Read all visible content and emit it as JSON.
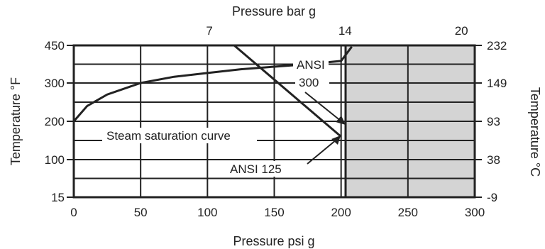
{
  "chart_data": {
    "type": "line",
    "xlabel": "Pressure psi g",
    "x2label": "Pressure bar g",
    "ylabel": "Temperature °F",
    "y2label": "Temperature °C",
    "xlim": [
      0,
      300
    ],
    "x_ticks": [
      "0",
      "50",
      "100",
      "150",
      "200",
      "250",
      "300"
    ],
    "x2_ticks": [
      {
        "label": "7",
        "psi": 101.5
      },
      {
        "label": "14",
        "psi": 203
      },
      {
        "label": "20",
        "psi": 290
      }
    ],
    "y_ticks_left": [
      {
        "label": "450",
        "f": 450
      },
      {
        "label": "300",
        "f": 300
      },
      {
        "label": "200",
        "f": 200
      },
      {
        "label": "100",
        "f": 100
      },
      {
        "label": "15",
        "f": 15
      }
    ],
    "y_ticks_right": [
      {
        "label": "232",
        "f": 450
      },
      {
        "label": "149",
        "f": 300
      },
      {
        "label": "93",
        "f": 200
      },
      {
        "label": "38",
        "f": 100
      },
      {
        "label": "-9",
        "f": 15
      }
    ],
    "grid": true,
    "shaded_region": {
      "x_from": 200,
      "x_to": 300,
      "color": "#d4d4d4"
    },
    "series": [
      {
        "name": "Steam saturation curve",
        "x": [
          0,
          10,
          25,
          50,
          75,
          100,
          125,
          150,
          175,
          200,
          208
        ],
        "y": [
          200,
          240,
          270,
          300,
          325,
          340,
          355,
          365,
          375,
          388,
          445
        ]
      },
      {
        "name": "ANSI 125",
        "x": [
          120,
          200
        ],
        "y": [
          450,
          160
        ]
      },
      {
        "name": "ANSI 300",
        "x": [
          0,
          200
        ],
        "y": [
          450,
          450
        ]
      }
    ],
    "annotations": {
      "steam": "Steam saturation curve",
      "ansi125": "ANSI 125",
      "ansi300_line1": "ANSI",
      "ansi300_line2": "300"
    }
  }
}
